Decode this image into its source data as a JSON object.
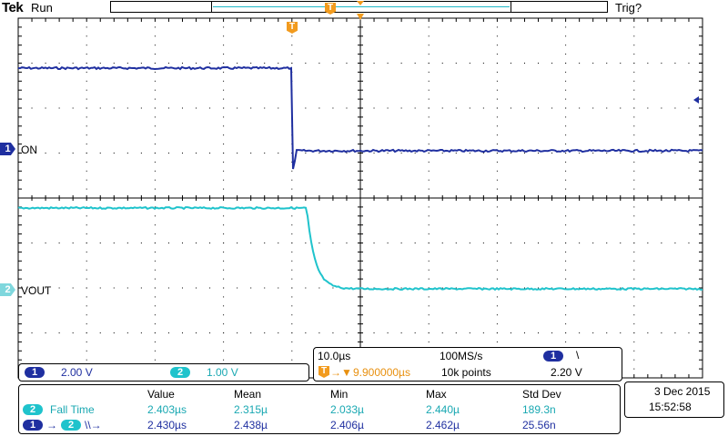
{
  "header": {
    "brand": "Tek",
    "run_state": "Run",
    "trigger_state": "Trig?"
  },
  "markers": {
    "trigger_glyph": "T"
  },
  "channels": [
    {
      "number": "1",
      "label": "ON",
      "scale": "2.00 V",
      "color": "#1f2fa0"
    },
    {
      "number": "2",
      "label": "VOUT",
      "scale": "1.00 V",
      "color": "#1fc3cc"
    }
  ],
  "horizontal": {
    "time_per_div": "10.0µs",
    "sample_rate": "100MS/s",
    "record_length": "10k points",
    "trigger_channel": "1",
    "trigger_slope_glyph": "\\",
    "trigger_level": "2.20 V",
    "trigger_position": "9.900000µs",
    "trigger_arrow": "→▼"
  },
  "measurements": {
    "headers": [
      "Value",
      "Mean",
      "Min",
      "Max",
      "Std Dev"
    ],
    "rows": [
      {
        "label": "Fall Time",
        "value": "2.403µs",
        "mean": "2.315µ",
        "min": "2.033µ",
        "max": "2.440µ",
        "stddev": "189.3n"
      },
      {
        "label": "→",
        "label2": "\\\\→",
        "value": "2.430µs",
        "mean": "2.438µ",
        "min": "2.406µ",
        "max": "2.462µ",
        "stddev": "25.56n"
      }
    ]
  },
  "datetime": {
    "date": "3 Dec  2015",
    "time": "15:52:58"
  },
  "colors": {
    "ch1": "#1f2fa0",
    "ch2": "#1fc3cc",
    "trigger": "#f29b1e",
    "grid": "#000000"
  }
}
